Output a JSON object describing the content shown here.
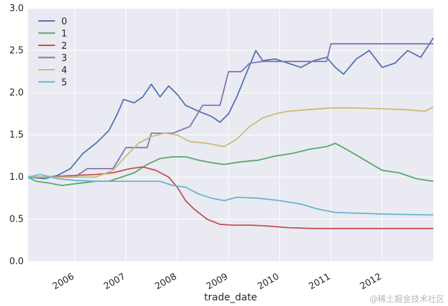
{
  "chart_data": {
    "type": "line",
    "xlabel": "trade_date",
    "ylabel": "",
    "x_ticks": [
      "2006",
      "2007",
      "2008",
      "2009",
      "2010",
      "2011",
      "2012"
    ],
    "y_ticks": [
      "0.0",
      "0.5",
      "1.0",
      "1.5",
      "2.0",
      "2.5",
      "3.0"
    ],
    "xlim": [
      "2005-02-01",
      "2012-12-31"
    ],
    "ylim": [
      0,
      3
    ],
    "grid": true,
    "legend_position": "top-left",
    "series": [
      {
        "name": "0",
        "color": "#4c72b0",
        "points": [
          [
            "2005-02-01",
            1.0
          ],
          [
            "2005-06-01",
            0.98
          ],
          [
            "2005-09-01",
            1.02
          ],
          [
            "2005-12-01",
            1.1
          ],
          [
            "2006-03-01",
            1.28
          ],
          [
            "2006-06-01",
            1.4
          ],
          [
            "2006-09-01",
            1.55
          ],
          [
            "2006-11-01",
            1.75
          ],
          [
            "2006-12-15",
            1.92
          ],
          [
            "2007-03-01",
            1.88
          ],
          [
            "2007-05-01",
            1.95
          ],
          [
            "2007-07-01",
            2.1
          ],
          [
            "2007-09-01",
            1.95
          ],
          [
            "2007-11-01",
            2.08
          ],
          [
            "2008-01-01",
            1.98
          ],
          [
            "2008-03-01",
            1.85
          ],
          [
            "2008-06-01",
            1.78
          ],
          [
            "2008-09-01",
            1.72
          ],
          [
            "2008-11-01",
            1.65
          ],
          [
            "2009-01-01",
            1.75
          ],
          [
            "2009-03-01",
            1.95
          ],
          [
            "2009-05-01",
            2.2
          ],
          [
            "2009-07-15",
            2.5
          ],
          [
            "2009-09-01",
            2.38
          ],
          [
            "2009-12-01",
            2.4
          ],
          [
            "2010-03-01",
            2.35
          ],
          [
            "2010-06-01",
            2.3
          ],
          [
            "2010-09-01",
            2.38
          ],
          [
            "2010-12-01",
            2.42
          ],
          [
            "2011-02-01",
            2.3
          ],
          [
            "2011-04-01",
            2.22
          ],
          [
            "2011-07-01",
            2.4
          ],
          [
            "2011-10-01",
            2.5
          ],
          [
            "2012-01-01",
            2.3
          ],
          [
            "2012-04-01",
            2.35
          ],
          [
            "2012-07-01",
            2.5
          ],
          [
            "2012-10-01",
            2.42
          ],
          [
            "2012-12-31",
            2.65
          ]
        ]
      },
      {
        "name": "1",
        "color": "#55a868",
        "points": [
          [
            "2005-02-01",
            1.0
          ],
          [
            "2005-04-01",
            0.95
          ],
          [
            "2005-07-01",
            0.93
          ],
          [
            "2005-10-01",
            0.9
          ],
          [
            "2006-01-01",
            0.92
          ],
          [
            "2006-06-01",
            0.95
          ],
          [
            "2006-09-01",
            0.95
          ],
          [
            "2006-12-01",
            1.0
          ],
          [
            "2007-03-01",
            1.05
          ],
          [
            "2007-06-01",
            1.15
          ],
          [
            "2007-09-01",
            1.22
          ],
          [
            "2007-12-01",
            1.24
          ],
          [
            "2008-03-01",
            1.24
          ],
          [
            "2008-06-01",
            1.2
          ],
          [
            "2008-09-01",
            1.17
          ],
          [
            "2008-12-01",
            1.15
          ],
          [
            "2009-04-01",
            1.18
          ],
          [
            "2009-08-01",
            1.2
          ],
          [
            "2009-12-01",
            1.25
          ],
          [
            "2010-04-01",
            1.28
          ],
          [
            "2010-08-01",
            1.33
          ],
          [
            "2010-12-01",
            1.36
          ],
          [
            "2011-02-01",
            1.4
          ],
          [
            "2011-05-01",
            1.32
          ],
          [
            "2011-09-01",
            1.2
          ],
          [
            "2012-01-01",
            1.08
          ],
          [
            "2012-05-01",
            1.05
          ],
          [
            "2012-09-01",
            0.98
          ],
          [
            "2012-12-31",
            0.95
          ]
        ]
      },
      {
        "name": "2",
        "color": "#c44e52",
        "points": [
          [
            "2005-02-01",
            1.0
          ],
          [
            "2005-06-01",
            1.0
          ],
          [
            "2006-01-01",
            1.02
          ],
          [
            "2006-06-01",
            1.03
          ],
          [
            "2006-10-01",
            1.05
          ],
          [
            "2007-02-01",
            1.1
          ],
          [
            "2007-05-01",
            1.12
          ],
          [
            "2007-08-01",
            1.08
          ],
          [
            "2007-11-01",
            1.0
          ],
          [
            "2008-01-01",
            0.88
          ],
          [
            "2008-03-01",
            0.72
          ],
          [
            "2008-05-01",
            0.62
          ],
          [
            "2008-08-01",
            0.5
          ],
          [
            "2008-11-01",
            0.44
          ],
          [
            "2009-02-01",
            0.43
          ],
          [
            "2009-06-01",
            0.43
          ],
          [
            "2009-10-01",
            0.42
          ],
          [
            "2010-03-01",
            0.4
          ],
          [
            "2010-09-01",
            0.39
          ],
          [
            "2011-03-01",
            0.39
          ],
          [
            "2012-12-31",
            0.39
          ]
        ]
      },
      {
        "name": "3",
        "color": "#8172b2",
        "points": [
          [
            "2005-02-01",
            1.0
          ],
          [
            "2005-08-01",
            1.0
          ],
          [
            "2006-01-01",
            1.0
          ],
          [
            "2006-04-01",
            1.1
          ],
          [
            "2006-10-01",
            1.1
          ],
          [
            "2007-01-01",
            1.35
          ],
          [
            "2007-06-01",
            1.35
          ],
          [
            "2007-07-01",
            1.52
          ],
          [
            "2007-12-01",
            1.52
          ],
          [
            "2008-04-01",
            1.6
          ],
          [
            "2008-07-01",
            1.85
          ],
          [
            "2008-11-01",
            1.85
          ],
          [
            "2009-01-01",
            2.25
          ],
          [
            "2009-04-01",
            2.25
          ],
          [
            "2009-06-01",
            2.35
          ],
          [
            "2009-09-01",
            2.37
          ],
          [
            "2010-12-01",
            2.37
          ],
          [
            "2011-01-01",
            2.58
          ],
          [
            "2012-12-31",
            2.58
          ]
        ]
      },
      {
        "name": "4",
        "color": "#ccb974",
        "points": [
          [
            "2005-02-01",
            1.0
          ],
          [
            "2005-06-01",
            1.0
          ],
          [
            "2006-01-01",
            1.0
          ],
          [
            "2006-06-01",
            1.0
          ],
          [
            "2006-10-01",
            1.08
          ],
          [
            "2007-01-01",
            1.25
          ],
          [
            "2007-04-01",
            1.4
          ],
          [
            "2007-07-01",
            1.48
          ],
          [
            "2007-10-01",
            1.52
          ],
          [
            "2008-01-01",
            1.5
          ],
          [
            "2008-04-01",
            1.42
          ],
          [
            "2008-08-01",
            1.4
          ],
          [
            "2008-12-01",
            1.36
          ],
          [
            "2009-03-01",
            1.45
          ],
          [
            "2009-06-01",
            1.6
          ],
          [
            "2009-09-01",
            1.7
          ],
          [
            "2009-12-01",
            1.75
          ],
          [
            "2010-03-01",
            1.78
          ],
          [
            "2010-08-01",
            1.8
          ],
          [
            "2011-01-01",
            1.82
          ],
          [
            "2011-06-01",
            1.82
          ],
          [
            "2012-01-01",
            1.81
          ],
          [
            "2012-06-01",
            1.8
          ],
          [
            "2012-11-01",
            1.78
          ],
          [
            "2012-12-31",
            1.83
          ]
        ]
      },
      {
        "name": "5",
        "color": "#64b5cd",
        "points": [
          [
            "2005-02-01",
            1.0
          ],
          [
            "2005-05-01",
            1.03
          ],
          [
            "2005-09-01",
            0.98
          ],
          [
            "2006-01-01",
            0.96
          ],
          [
            "2006-06-01",
            0.95
          ],
          [
            "2007-01-01",
            0.95
          ],
          [
            "2007-06-01",
            0.95
          ],
          [
            "2007-09-01",
            0.95
          ],
          [
            "2007-12-01",
            0.9
          ],
          [
            "2008-03-01",
            0.88
          ],
          [
            "2008-06-01",
            0.8
          ],
          [
            "2008-09-01",
            0.75
          ],
          [
            "2008-12-01",
            0.72
          ],
          [
            "2009-03-01",
            0.76
          ],
          [
            "2009-08-01",
            0.75
          ],
          [
            "2010-01-01",
            0.72
          ],
          [
            "2010-06-01",
            0.68
          ],
          [
            "2010-10-01",
            0.62
          ],
          [
            "2011-02-01",
            0.58
          ],
          [
            "2011-08-01",
            0.57
          ],
          [
            "2012-02-01",
            0.56
          ],
          [
            "2012-12-31",
            0.55
          ]
        ]
      }
    ]
  },
  "watermark": "@稀土掘金技术社区"
}
